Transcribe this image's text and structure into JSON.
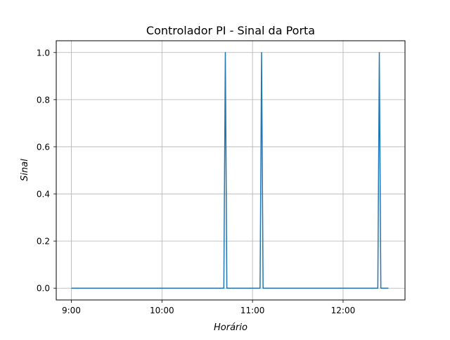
{
  "chart_data": {
    "type": "line",
    "title": "Controlador PI - Sinal da Porta",
    "xlabel": "Horário",
    "ylabel": "Sinal",
    "x_unit": "hours",
    "xlim": [
      "8:50",
      "12:41"
    ],
    "ylim": [
      -0.05,
      1.05
    ],
    "x_ticks": [
      "9:00",
      "10:00",
      "11:00",
      "12:00"
    ],
    "y_ticks": [
      "0.0",
      "0.2",
      "0.4",
      "0.6",
      "0.8",
      "1.0"
    ],
    "y_tick_values": [
      0,
      0.2,
      0.4,
      0.6,
      0.8,
      1.0
    ],
    "grid": true,
    "colors": {
      "series": "#1f77b4",
      "grid": "#b0b0b0",
      "axes": "#000000"
    },
    "series": [
      {
        "x": [
          "9:00",
          "10:41",
          "10:42",
          "10:43",
          "11:05",
          "11:06",
          "11:07",
          "12:23",
          "12:24",
          "12:25",
          "12:30"
        ],
        "y": [
          0,
          0,
          1,
          0,
          0,
          1,
          0,
          0,
          1,
          0,
          0
        ]
      }
    ]
  }
}
